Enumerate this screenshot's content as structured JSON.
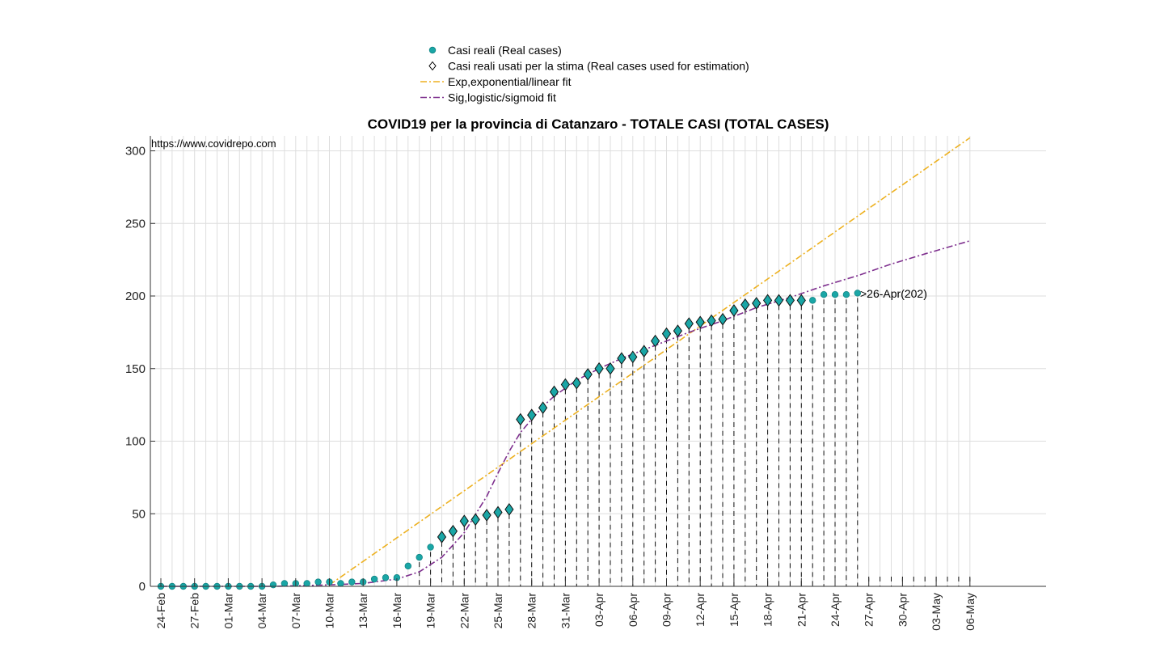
{
  "chart_data": {
    "type": "scatter",
    "title": "COVID19 per la provincia di Catanzaro - TOTALE CASI (TOTAL CASES)",
    "source_note": "https://www.covidrepo.com",
    "xlabel": "",
    "ylabel": "",
    "x_start_date": "2020-02-24",
    "x_tick_labels": [
      "24-Feb",
      "27-Feb",
      "01-Mar",
      "04-Mar",
      "07-Mar",
      "10-Mar",
      "13-Mar",
      "16-Mar",
      "19-Mar",
      "22-Mar",
      "25-Mar",
      "28-Mar",
      "31-Mar",
      "03-Apr",
      "06-Apr",
      "09-Apr",
      "12-Apr",
      "15-Apr",
      "18-Apr",
      "21-Apr",
      "24-Apr",
      "27-Apr",
      "30-Apr",
      "03-May",
      "06-May"
    ],
    "xlim": [
      "2020-02-24",
      "2020-05-06"
    ],
    "ylim": [
      0,
      300
    ],
    "y_ticks": [
      0,
      50,
      100,
      150,
      200,
      250,
      300
    ],
    "grid": true,
    "legend_position": "top",
    "annotation": ">26-Apr(202)",
    "legend": [
      {
        "label": "Casi reali (Real cases)",
        "marker": "circle",
        "color": "#1aa6a6"
      },
      {
        "label": "Casi reali usati per la stima (Real cases used for estimation)",
        "marker": "diamond",
        "color": "#000000"
      },
      {
        "label": "Exp,exponential/linear fit",
        "line": "dashdot",
        "color": "#edb120"
      },
      {
        "label": "Sig,logistic/sigmoid fit",
        "line": "dashdot",
        "color": "#7e2f8e"
      }
    ],
    "series": [
      {
        "name": "Casi reali (Real cases)",
        "dates": [
          "2020-02-24",
          "2020-02-25",
          "2020-02-26",
          "2020-02-27",
          "2020-02-28",
          "2020-02-29",
          "2020-03-01",
          "2020-03-02",
          "2020-03-03",
          "2020-03-04",
          "2020-03-05",
          "2020-03-06",
          "2020-03-07",
          "2020-03-08",
          "2020-03-09",
          "2020-03-10",
          "2020-03-11",
          "2020-03-12",
          "2020-03-13",
          "2020-03-14",
          "2020-03-15",
          "2020-03-16",
          "2020-03-17",
          "2020-03-18",
          "2020-03-19",
          "2020-03-20",
          "2020-03-21",
          "2020-03-22",
          "2020-03-23",
          "2020-03-24",
          "2020-03-25",
          "2020-03-26",
          "2020-03-27",
          "2020-03-28",
          "2020-03-29",
          "2020-03-30",
          "2020-03-31",
          "2020-04-01",
          "2020-04-02",
          "2020-04-03",
          "2020-04-04",
          "2020-04-05",
          "2020-04-06",
          "2020-04-07",
          "2020-04-08",
          "2020-04-09",
          "2020-04-10",
          "2020-04-11",
          "2020-04-12",
          "2020-04-13",
          "2020-04-14",
          "2020-04-15",
          "2020-04-16",
          "2020-04-17",
          "2020-04-18",
          "2020-04-19",
          "2020-04-20",
          "2020-04-21",
          "2020-04-22",
          "2020-04-23",
          "2020-04-24",
          "2020-04-25",
          "2020-04-26"
        ],
        "values": [
          0,
          0,
          0,
          0,
          0,
          0,
          0,
          0,
          0,
          0,
          1,
          2,
          2,
          2,
          3,
          3,
          2,
          3,
          3,
          5,
          6,
          6,
          14,
          20,
          27,
          34,
          38,
          45,
          46,
          49,
          51,
          53,
          115,
          118,
          123,
          134,
          139,
          140,
          146,
          150,
          150,
          157,
          158,
          162,
          169,
          174,
          176,
          181,
          182,
          183,
          184,
          190,
          194,
          195,
          197,
          197,
          197,
          197,
          197,
          201,
          201,
          201,
          202
        ]
      },
      {
        "name": "Casi reali usati per la stima (Real cases used for estimation)",
        "dates": [
          "2020-03-20",
          "2020-03-21",
          "2020-03-22",
          "2020-03-23",
          "2020-03-24",
          "2020-03-25",
          "2020-03-26",
          "2020-03-27",
          "2020-03-28",
          "2020-03-29",
          "2020-03-30",
          "2020-03-31",
          "2020-04-01",
          "2020-04-02",
          "2020-04-03",
          "2020-04-04",
          "2020-04-05",
          "2020-04-06",
          "2020-04-07",
          "2020-04-08",
          "2020-04-09",
          "2020-04-10",
          "2020-04-11",
          "2020-04-12",
          "2020-04-13",
          "2020-04-14",
          "2020-04-15",
          "2020-04-16",
          "2020-04-17",
          "2020-04-18",
          "2020-04-19",
          "2020-04-20",
          "2020-04-21"
        ],
        "values": [
          34,
          38,
          45,
          46,
          49,
          51,
          53,
          115,
          118,
          123,
          134,
          139,
          140,
          146,
          150,
          150,
          157,
          158,
          162,
          169,
          174,
          176,
          181,
          182,
          183,
          184,
          190,
          194,
          195,
          197,
          197,
          197,
          197
        ]
      },
      {
        "name": "Exp,exponential/linear fit",
        "dates": [
          "2020-03-10",
          "2020-05-06"
        ],
        "values": [
          1,
          309
        ]
      },
      {
        "name": "Sig,logistic/sigmoid fit",
        "dates": [
          "2020-02-24",
          "2020-03-05",
          "2020-03-10",
          "2020-03-13",
          "2020-03-16",
          "2020-03-18",
          "2020-03-20",
          "2020-03-22",
          "2020-03-24",
          "2020-03-25",
          "2020-03-26",
          "2020-03-27",
          "2020-03-28",
          "2020-03-29",
          "2020-03-30",
          "2020-04-01",
          "2020-04-03",
          "2020-04-05",
          "2020-04-07",
          "2020-04-09",
          "2020-04-11",
          "2020-04-14",
          "2020-04-17",
          "2020-04-20",
          "2020-04-23",
          "2020-04-26",
          "2020-04-29",
          "2020-05-02",
          "2020-05-06"
        ],
        "values": [
          0,
          0,
          1,
          2,
          5,
          10,
          20,
          37,
          62,
          78,
          93,
          106,
          115,
          124,
          131,
          142,
          150,
          157,
          163,
          169,
          175,
          183,
          192,
          199,
          207,
          214,
          222,
          229,
          238
        ]
      }
    ]
  }
}
